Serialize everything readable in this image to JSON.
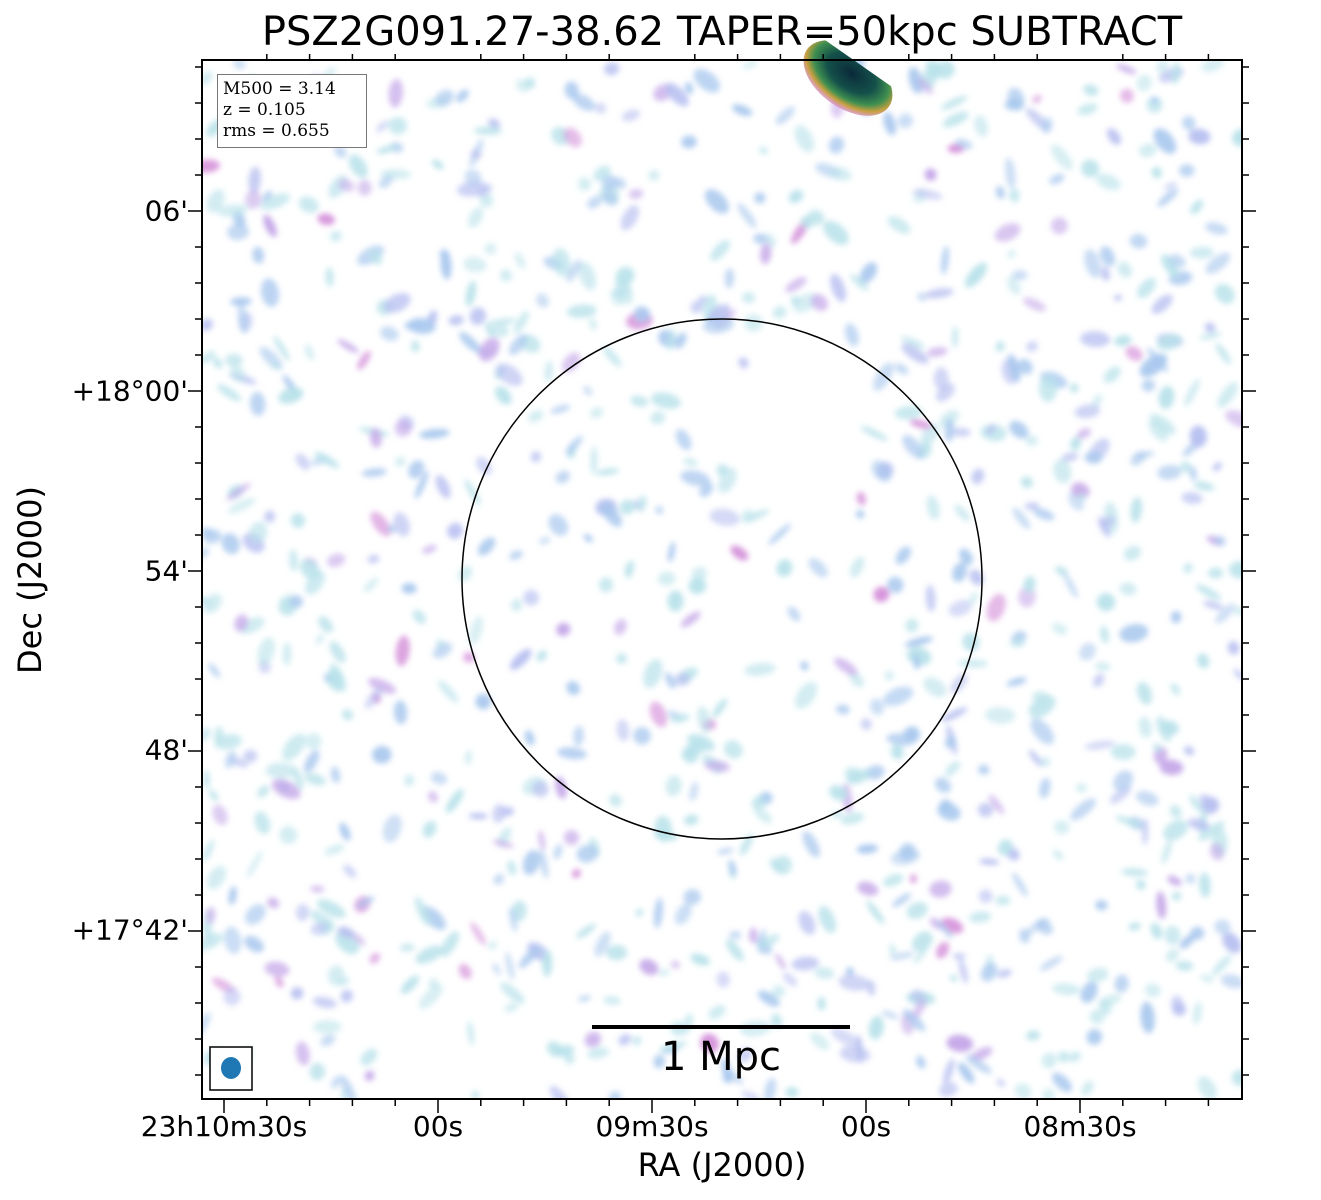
{
  "title": "PSZ2G091.27-38.62 TAPER=50kpc SUBTRACT",
  "axes": {
    "xlabel": "RA (J2000)",
    "ylabel": "Dec (J2000)",
    "xticks": [
      "23h10m30s",
      "00s",
      "09m30s",
      "00s",
      "08m30s"
    ],
    "yticks": [
      "06'",
      "+18°00'",
      "54'",
      "48'",
      "+17°42'"
    ]
  },
  "infobox": {
    "mass": "M500 = 3.14",
    "redshift": "z = 0.105",
    "rms": "rms = 0.655"
  },
  "scalebar": {
    "label": "1 Mpc"
  },
  "colors": {
    "beam": "#1f77b4",
    "bright_source": "#0b3b3f"
  }
}
